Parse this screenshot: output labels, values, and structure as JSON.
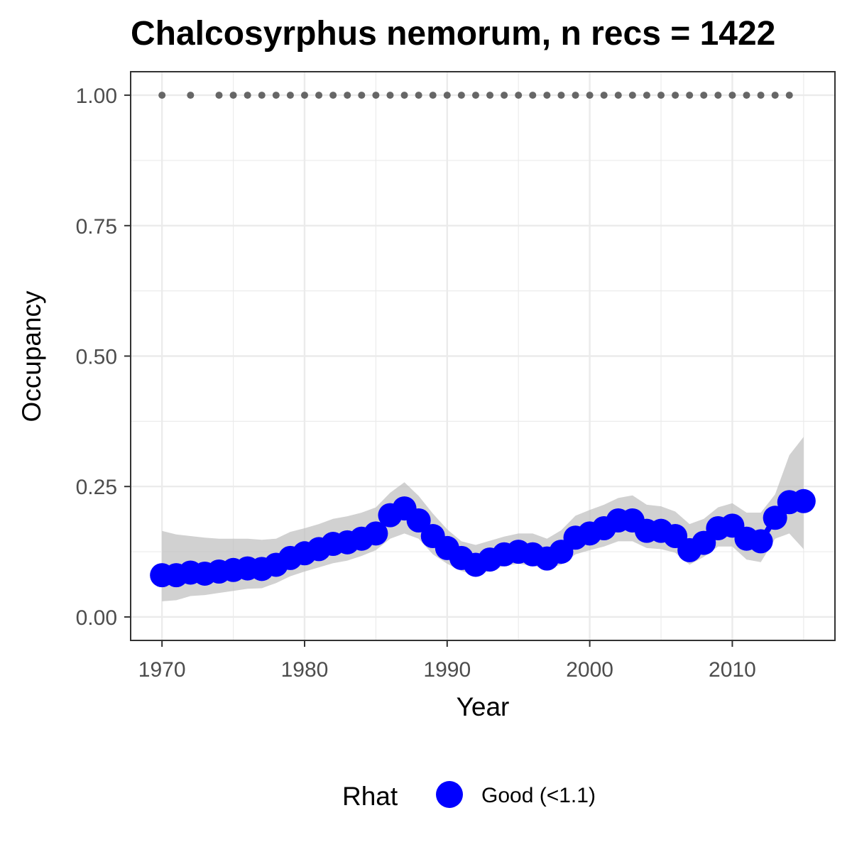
{
  "chart_data": {
    "type": "line",
    "title": "Chalcosyrphus nemorum, n recs = 1422",
    "xlabel": "Year",
    "ylabel": "Occupancy",
    "xlim": [
      1967.8,
      2017.2
    ],
    "ylim": [
      -0.045,
      1.045
    ],
    "x_ticks": [
      1970,
      1980,
      1990,
      2000,
      2010
    ],
    "y_ticks": [
      0.0,
      0.25,
      0.5,
      0.75,
      1.0
    ],
    "y_tick_labels": [
      "0.00",
      "0.25",
      "0.50",
      "0.75",
      "1.00"
    ],
    "grid": true,
    "legend": {
      "title": "Rhat",
      "position": "bottom",
      "entries": [
        {
          "label": "Good (<1.1)",
          "color": "#0000ff"
        }
      ]
    },
    "colors": {
      "series": "#0000ff",
      "ribbon": "#bdbdbd",
      "record_dots": "#666666",
      "grid": "#ebebeb",
      "border": "#333333"
    },
    "series": [
      {
        "x": [
          1970,
          1971,
          1972,
          1973,
          1974,
          1975,
          1976,
          1977,
          1978,
          1979,
          1980,
          1981,
          1982,
          1983,
          1984,
          1985,
          1986,
          1987,
          1988,
          1989,
          1990,
          1991,
          1992,
          1993,
          1994,
          1995,
          1996,
          1997,
          1998,
          1999,
          2000,
          2001,
          2002,
          2003,
          2004,
          2005,
          2006,
          2007,
          2008,
          2009,
          2010,
          2011,
          2012,
          2013,
          2014,
          2015
        ],
        "y": [
          0.08,
          0.08,
          0.085,
          0.083,
          0.087,
          0.09,
          0.093,
          0.092,
          0.1,
          0.113,
          0.122,
          0.13,
          0.14,
          0.143,
          0.15,
          0.16,
          0.195,
          0.208,
          0.185,
          0.155,
          0.132,
          0.113,
          0.1,
          0.11,
          0.12,
          0.125,
          0.12,
          0.112,
          0.125,
          0.152,
          0.16,
          0.17,
          0.185,
          0.185,
          0.165,
          0.165,
          0.155,
          0.128,
          0.142,
          0.17,
          0.175,
          0.15,
          0.145,
          0.19,
          0.22,
          0.222
        ],
        "lower": [
          0.03,
          0.032,
          0.04,
          0.042,
          0.046,
          0.05,
          0.054,
          0.055,
          0.065,
          0.078,
          0.087,
          0.095,
          0.103,
          0.108,
          0.117,
          0.128,
          0.15,
          0.16,
          0.15,
          0.12,
          0.102,
          0.088,
          0.08,
          0.088,
          0.098,
          0.102,
          0.098,
          0.092,
          0.1,
          0.12,
          0.128,
          0.135,
          0.145,
          0.145,
          0.132,
          0.13,
          0.123,
          0.1,
          0.115,
          0.135,
          0.135,
          0.11,
          0.105,
          0.15,
          0.16,
          0.13
        ],
        "upper": [
          0.165,
          0.158,
          0.155,
          0.152,
          0.15,
          0.15,
          0.15,
          0.148,
          0.15,
          0.163,
          0.17,
          0.178,
          0.188,
          0.193,
          0.2,
          0.21,
          0.238,
          0.258,
          0.232,
          0.198,
          0.168,
          0.145,
          0.138,
          0.146,
          0.154,
          0.16,
          0.16,
          0.15,
          0.166,
          0.194,
          0.205,
          0.215,
          0.228,
          0.233,
          0.215,
          0.212,
          0.202,
          0.178,
          0.188,
          0.21,
          0.218,
          0.2,
          0.2,
          0.235,
          0.31,
          0.345
        ]
      }
    ],
    "record_years": [
      1970,
      1972,
      1974,
      1975,
      1976,
      1977,
      1978,
      1979,
      1980,
      1981,
      1982,
      1983,
      1984,
      1985,
      1986,
      1987,
      1988,
      1989,
      1990,
      1991,
      1992,
      1993,
      1994,
      1995,
      1996,
      1997,
      1998,
      1999,
      2000,
      2001,
      2002,
      2003,
      2004,
      2005,
      2006,
      2007,
      2008,
      2009,
      2010,
      2011,
      2012,
      2013,
      2014
    ],
    "record_y": 1.0
  }
}
